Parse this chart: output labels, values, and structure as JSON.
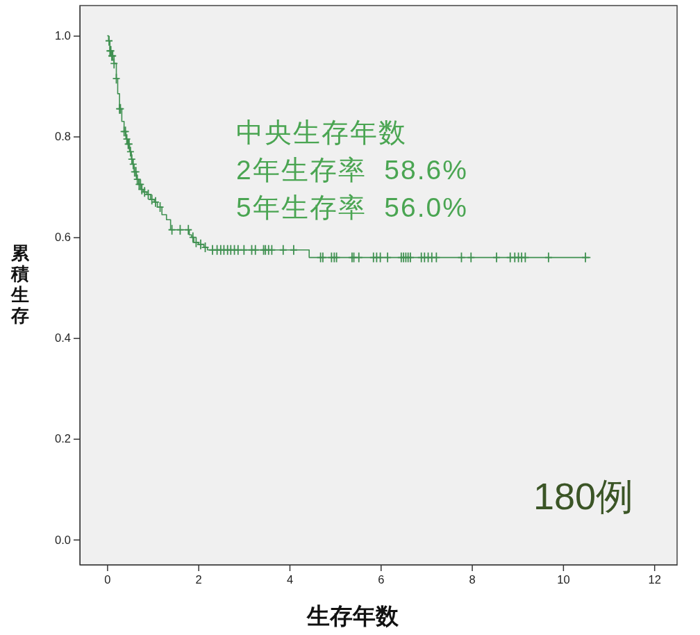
{
  "chart_data": {
    "type": "step",
    "xlabel": "生存年数",
    "ylabel": "累積生存",
    "annotations": [
      "中央生存年数",
      "2年生存率  58.6%",
      "5年生存率  56.0%",
      "180例"
    ],
    "xlim": [
      -0.6,
      12.5
    ],
    "ylim": [
      -0.05,
      1.06
    ],
    "xticks": [
      0,
      2,
      4,
      6,
      8,
      10,
      12
    ],
    "yticks": [
      {
        "value": 0,
        "label": "0.0"
      },
      0.2,
      0.4,
      0.6,
      0.8,
      {
        "value": 1,
        "label": "1.0"
      }
    ],
    "series": [
      {
        "color": "#3f9050",
        "x": [
          0,
          0.03,
          0.06,
          0.1,
          0.15,
          0.2,
          0.23,
          0.27,
          0.32,
          0.37,
          0.41,
          0.44,
          0.49,
          0.53,
          0.56,
          0.59,
          0.64,
          0.69,
          0.74,
          0.79,
          0.87,
          0.95,
          1.03,
          1.1,
          1.2,
          1.3,
          1.39,
          1.8,
          1.85,
          1.9,
          2.0,
          2.12,
          2.2,
          4.43,
          10.6
        ],
        "values": [
          1.0,
          0.99,
          0.97,
          0.96,
          0.945,
          0.915,
          0.885,
          0.855,
          0.83,
          0.81,
          0.795,
          0.785,
          0.77,
          0.755,
          0.745,
          0.73,
          0.715,
          0.705,
          0.695,
          0.69,
          0.685,
          0.675,
          0.67,
          0.66,
          0.645,
          0.635,
          0.615,
          0.605,
          0.6,
          0.59,
          0.586,
          0.58,
          0.575,
          0.56,
          0.56
        ]
      },
      {
        "type": "scatter",
        "color": "#3f9050",
        "marker": "cross",
        "x": [
          0.04,
          0.06,
          0.08,
          0.1,
          0.12,
          0.15,
          0.2,
          0.27,
          0.29,
          0.37,
          0.4,
          0.43,
          0.46,
          0.48,
          0.51,
          0.54,
          0.57,
          0.6,
          0.63,
          0.66,
          0.7,
          0.73,
          0.76,
          0.82,
          0.9,
          0.98,
          1.06,
          1.16,
          1.42,
          1.6,
          1.78,
          1.88,
          1.95,
          2.05,
          2.15,
          2.31,
          2.41,
          2.49,
          2.56,
          2.64,
          2.71,
          2.79,
          2.87,
          3.0,
          3.17,
          3.25,
          3.43,
          3.47,
          3.54,
          3.61,
          3.86,
          4.09,
          4.68,
          4.73,
          4.92,
          4.98,
          5.03,
          5.37,
          5.41,
          5.52,
          5.84,
          5.91,
          5.99,
          6.15,
          6.45,
          6.5,
          6.55,
          6.6,
          6.65,
          6.89,
          6.96,
          7.04,
          7.12,
          7.22,
          7.77,
          7.98,
          8.54,
          8.84,
          8.94,
          9.02,
          9.09,
          9.17,
          9.68,
          10.49
        ],
        "values": [
          0.99,
          0.97,
          0.97,
          0.96,
          0.96,
          0.945,
          0.915,
          0.855,
          0.855,
          0.81,
          0.81,
          0.795,
          0.785,
          0.785,
          0.77,
          0.755,
          0.745,
          0.73,
          0.73,
          0.715,
          0.705,
          0.705,
          0.695,
          0.69,
          0.685,
          0.675,
          0.67,
          0.66,
          0.615,
          0.615,
          0.615,
          0.6,
          0.59,
          0.586,
          0.58,
          0.575,
          0.575,
          0.575,
          0.575,
          0.575,
          0.575,
          0.575,
          0.575,
          0.575,
          0.575,
          0.575,
          0.575,
          0.575,
          0.575,
          0.575,
          0.575,
          0.575,
          0.56,
          0.56,
          0.56,
          0.56,
          0.56,
          0.56,
          0.56,
          0.56,
          0.56,
          0.56,
          0.56,
          0.56,
          0.56,
          0.56,
          0.56,
          0.56,
          0.56,
          0.56,
          0.56,
          0.56,
          0.56,
          0.56,
          0.56,
          0.56,
          0.56,
          0.56,
          0.56,
          0.56,
          0.56,
          0.56,
          0.56,
          0.56
        ]
      }
    ]
  }
}
